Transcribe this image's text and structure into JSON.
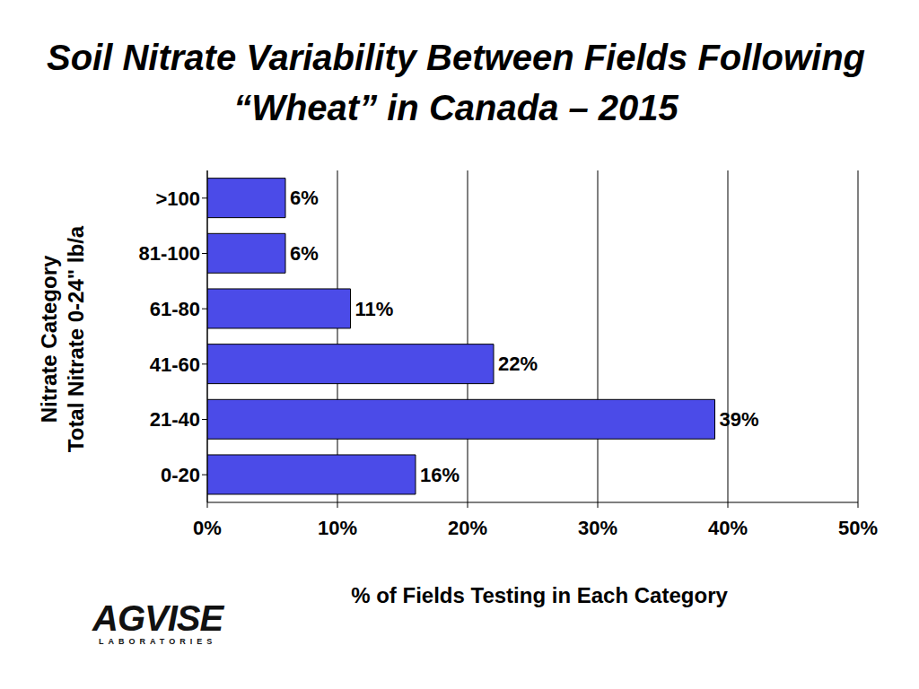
{
  "chart_data": {
    "type": "bar",
    "orientation": "horizontal",
    "title": "Soil Nitrate Variability Between Fields Following “Wheat” in Canada – 2015",
    "x_label": "% of Fields Testing in Each Category",
    "y_label": [
      "Nitrate Category",
      "Total Nitrate 0-24\" lb/a"
    ],
    "categories": [
      "0-20",
      "21-40",
      "41-60",
      "61-80",
      "81-100",
      ">100"
    ],
    "values": [
      16,
      39,
      22,
      11,
      6,
      6
    ],
    "value_labels": [
      "16%",
      "39%",
      "22%",
      "11%",
      "6%",
      "6%"
    ],
    "data_labels": true,
    "color": "#4b4be8",
    "xlim": [
      0,
      50
    ],
    "xticks": [
      {
        "value": 0,
        "label": "0%"
      },
      {
        "value": 10,
        "label": "10%"
      },
      {
        "value": 20,
        "label": "20%"
      },
      {
        "value": 30,
        "label": "30%"
      },
      {
        "value": 40,
        "label": "40%"
      },
      {
        "value": 50,
        "label": "50%"
      }
    ],
    "grid": true,
    "logo": {
      "text": "AGVISE",
      "subtext": "LABORATORIES"
    }
  }
}
